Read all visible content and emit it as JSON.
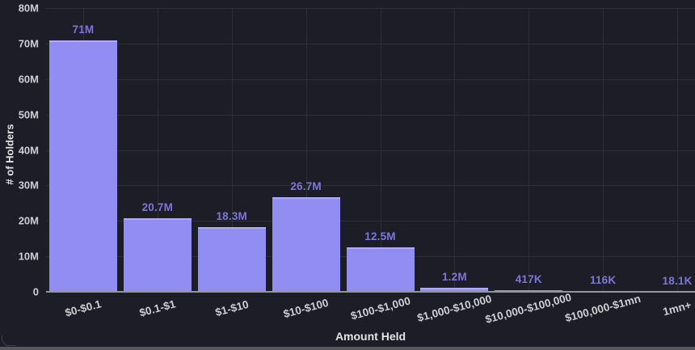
{
  "chart_data": {
    "type": "bar",
    "title": "",
    "xlabel": "Amount Held",
    "ylabel": "# of Holders",
    "categories": [
      "$0-$0.1",
      "$0.1-$1",
      "$1-$10",
      "$10-$100",
      "$100-$1,000",
      "$1,000-$10,000",
      "$10,000-$100,000",
      "$100,000-$1mn",
      "1mn+"
    ],
    "values": [
      71000000,
      20700000,
      18300000,
      26700000,
      12500000,
      1200000,
      417000,
      116000,
      18100
    ],
    "bar_labels": [
      "71M",
      "20.7M",
      "18.3M",
      "26.7M",
      "12.5M",
      "1.2M",
      "417K",
      "116K",
      "18.1K"
    ],
    "y_tick_labels": [
      "0",
      "10M",
      "20M",
      "30M",
      "40M",
      "50M",
      "60M",
      "70M",
      "80M"
    ],
    "ylim": [
      0,
      80000000
    ],
    "grid": true,
    "legend": "none",
    "x_tick_rotation_deg": -15
  },
  "colors": {
    "background": "#1d1d27",
    "bar_fill": "#928df2",
    "bar_top_highlight": "#b0abf7",
    "data_label": "#7d76d8",
    "tick_text": "#cdced3",
    "axis_title_text": "#e2e2e6",
    "gridline": "#2e2e39",
    "axis_line": "#94949b",
    "bottom_strip": "#57575c"
  }
}
